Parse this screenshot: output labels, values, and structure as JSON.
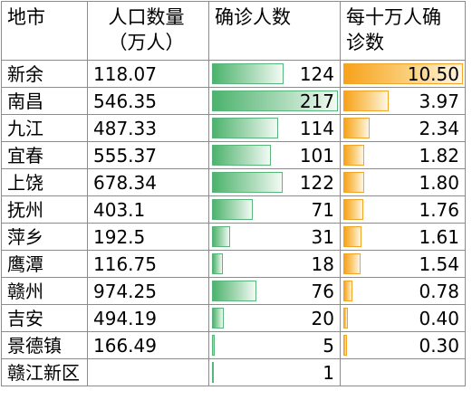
{
  "headers": {
    "city": "地市",
    "population": "人口数量（万人）",
    "cases": "确诊人数",
    "rate": "每十万人确诊数"
  },
  "colors": {
    "case_bar": "#4cb36d",
    "rate_bar": "#f7a21b",
    "grid": "#8c8c8c"
  },
  "rows": [
    {
      "city": "新余",
      "population": "118.07",
      "cases": "124",
      "rate": "10.50",
      "case_value": 124,
      "rate_value": 10.5
    },
    {
      "city": "南昌",
      "population": "546.35",
      "cases": "217",
      "rate": "3.97",
      "case_value": 217,
      "rate_value": 3.97
    },
    {
      "city": "九江",
      "population": "487.33",
      "cases": "114",
      "rate": "2.34",
      "case_value": 114,
      "rate_value": 2.34
    },
    {
      "city": "宜春",
      "population": "555.37",
      "cases": "101",
      "rate": "1.82",
      "case_value": 101,
      "rate_value": 1.82
    },
    {
      "city": "上饶",
      "population": "678.34",
      "cases": "122",
      "rate": "1.80",
      "case_value": 122,
      "rate_value": 1.8
    },
    {
      "city": "抚州",
      "population": "403.1",
      "cases": "71",
      "rate": "1.76",
      "case_value": 71,
      "rate_value": 1.76
    },
    {
      "city": "萍乡",
      "population": "192.5",
      "cases": "31",
      "rate": "1.61",
      "case_value": 31,
      "rate_value": 1.61
    },
    {
      "city": "鹰潭",
      "population": "116.75",
      "cases": "18",
      "rate": "1.54",
      "case_value": 18,
      "rate_value": 1.54
    },
    {
      "city": "赣州",
      "population": "974.25",
      "cases": "76",
      "rate": "0.78",
      "case_value": 76,
      "rate_value": 0.78
    },
    {
      "city": "吉安",
      "population": "494.19",
      "cases": "20",
      "rate": "0.40",
      "case_value": 20,
      "rate_value": 0.4
    },
    {
      "city": "景德镇",
      "population": "166.49",
      "cases": "5",
      "rate": "0.30",
      "case_value": 5,
      "rate_value": 0.3
    },
    {
      "city": "赣江新区",
      "population": "",
      "cases": "1",
      "rate": "",
      "case_value": 1,
      "rate_value": null
    }
  ]
}
